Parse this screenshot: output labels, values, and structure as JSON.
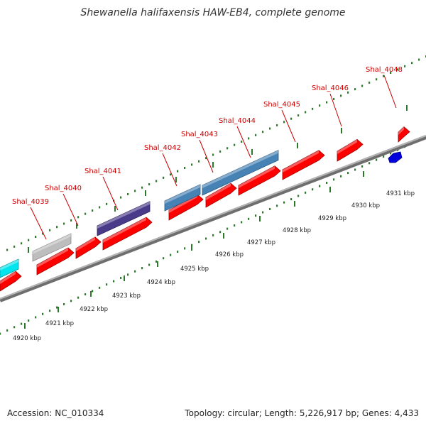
{
  "title": "Shewanella halifaxensis HAW-EB4, complete genome",
  "footer": {
    "accession": "Accession: NC_010334",
    "summary": "Topology: circular; Length: 5,226,917 bp; Genes: 4,433"
  },
  "colors": {
    "forward_cds": "#ff0000",
    "reverse_cds": "#0000dd",
    "gene_label": "#cc0000",
    "tick": "#2a7a2a",
    "backbone": "#808080",
    "cyan_feature": "#00e5ee",
    "gray_feature": "#bdbdbd",
    "purple_feature": "#4a3a8a",
    "steel_feature": "#4682b4"
  },
  "kbp_labels": [
    "4920 kbp",
    "4921 kbp",
    "4922 kbp",
    "4923 kbp",
    "4924 kbp",
    "4925 kbp",
    "4926 kbp",
    "4927 kbp",
    "4928 kbp",
    "4929 kbp",
    "4930 kbp",
    "4931 kbp"
  ],
  "gene_labels": [
    "Shal_4039",
    "Shal_4040",
    "Shal_4041",
    "Shal_4042",
    "Shal_4043",
    "Shal_4044",
    "Shal_4045",
    "Shal_4046",
    "Shal_4048"
  ]
}
